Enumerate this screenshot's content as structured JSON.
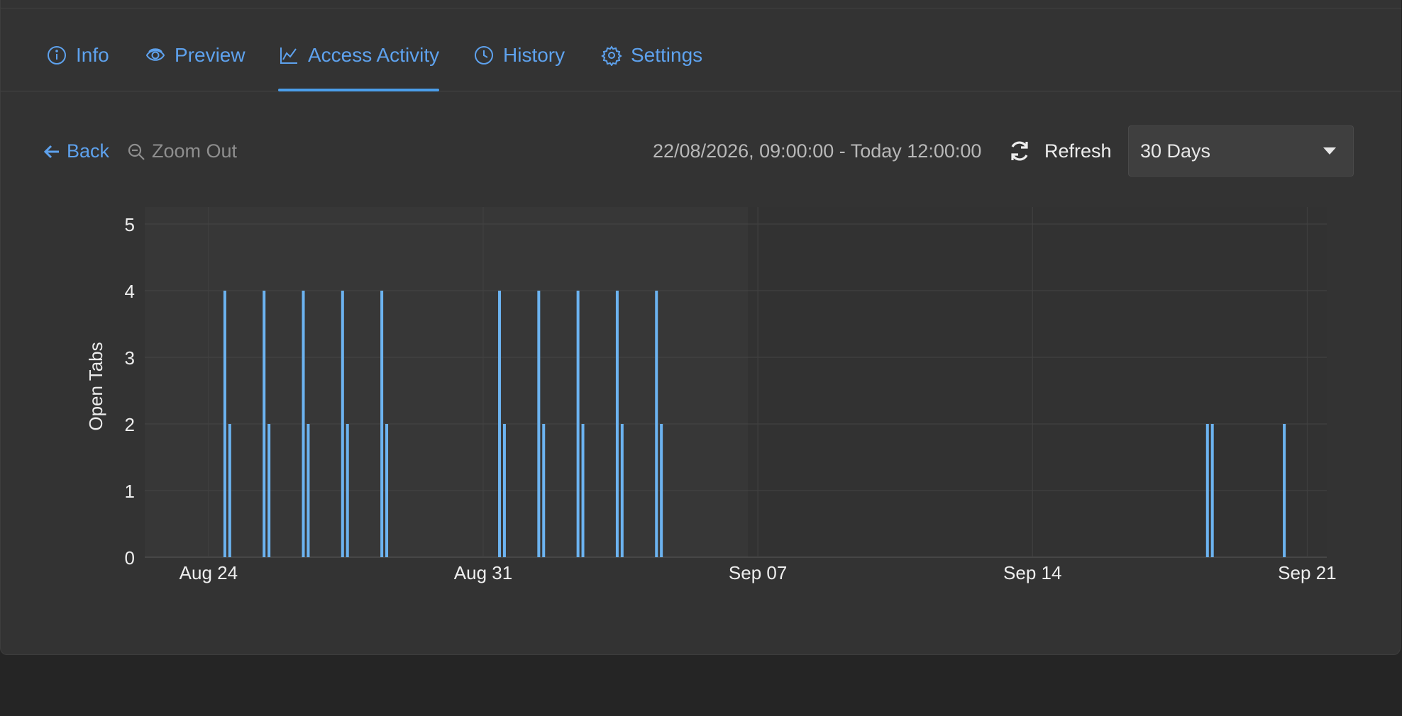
{
  "tabs": [
    {
      "label": "Info",
      "icon": "info-icon"
    },
    {
      "label": "Preview",
      "icon": "eye-icon"
    },
    {
      "label": "Access Activity",
      "icon": "chart-line-icon",
      "active": true
    },
    {
      "label": "History",
      "icon": "clock-icon"
    },
    {
      "label": "Settings",
      "icon": "gear-icon"
    }
  ],
  "toolbar": {
    "back_label": "Back",
    "zoom_out_label": "Zoom Out",
    "range_text": "22/08/2026, 09:00:00 - Today 12:00:00",
    "refresh_label": "Refresh",
    "period_selected": "30 Days"
  },
  "colors": {
    "accent": "#5ea2ee",
    "bar": "#6cb3f0",
    "panel": "#333333"
  },
  "chart_data": {
    "type": "bar",
    "title": "",
    "xlabel": "",
    "ylabel": "Open Tabs",
    "x_start": "2026-08-22T09:00:00",
    "x_end": "2026-09-21T12:00:00",
    "ylim": [
      0,
      5
    ],
    "yticks": [
      "0",
      "1",
      "2",
      "3",
      "4",
      "5"
    ],
    "xticks": [
      {
        "date": "2026-08-24",
        "label": "Aug 24"
      },
      {
        "date": "2026-08-31",
        "label": "Aug 31"
      },
      {
        "date": "2026-09-07",
        "label": "Sep 07"
      },
      {
        "date": "2026-09-14",
        "label": "Sep 14"
      },
      {
        "date": "2026-09-21",
        "label": "Sep 21"
      }
    ],
    "grid": true,
    "highlight_range": [
      "2026-08-22T09:00:00",
      "2026-09-06T18:00:00"
    ],
    "points": [
      {
        "t": "2026-08-24T10:00:00",
        "v": 4
      },
      {
        "t": "2026-08-24T13:00:00",
        "v": 2
      },
      {
        "t": "2026-08-25T10:00:00",
        "v": 4
      },
      {
        "t": "2026-08-25T13:00:00",
        "v": 2
      },
      {
        "t": "2026-08-26T10:00:00",
        "v": 4
      },
      {
        "t": "2026-08-26T13:00:00",
        "v": 2
      },
      {
        "t": "2026-08-27T10:00:00",
        "v": 4
      },
      {
        "t": "2026-08-27T13:00:00",
        "v": 2
      },
      {
        "t": "2026-08-28T10:00:00",
        "v": 4
      },
      {
        "t": "2026-08-28T13:00:00",
        "v": 2
      },
      {
        "t": "2026-08-31T10:00:00",
        "v": 4
      },
      {
        "t": "2026-08-31T13:00:00",
        "v": 2
      },
      {
        "t": "2026-09-01T10:00:00",
        "v": 4
      },
      {
        "t": "2026-09-01T13:00:00",
        "v": 2
      },
      {
        "t": "2026-09-02T10:00:00",
        "v": 4
      },
      {
        "t": "2026-09-02T13:00:00",
        "v": 2
      },
      {
        "t": "2026-09-03T10:00:00",
        "v": 4
      },
      {
        "t": "2026-09-03T13:00:00",
        "v": 2
      },
      {
        "t": "2026-09-04T10:00:00",
        "v": 4
      },
      {
        "t": "2026-09-04T13:00:00",
        "v": 2
      },
      {
        "t": "2026-09-18T11:00:00",
        "v": 2
      },
      {
        "t": "2026-09-18T14:00:00",
        "v": 2
      },
      {
        "t": "2026-09-20T10:00:00",
        "v": 2
      }
    ]
  }
}
